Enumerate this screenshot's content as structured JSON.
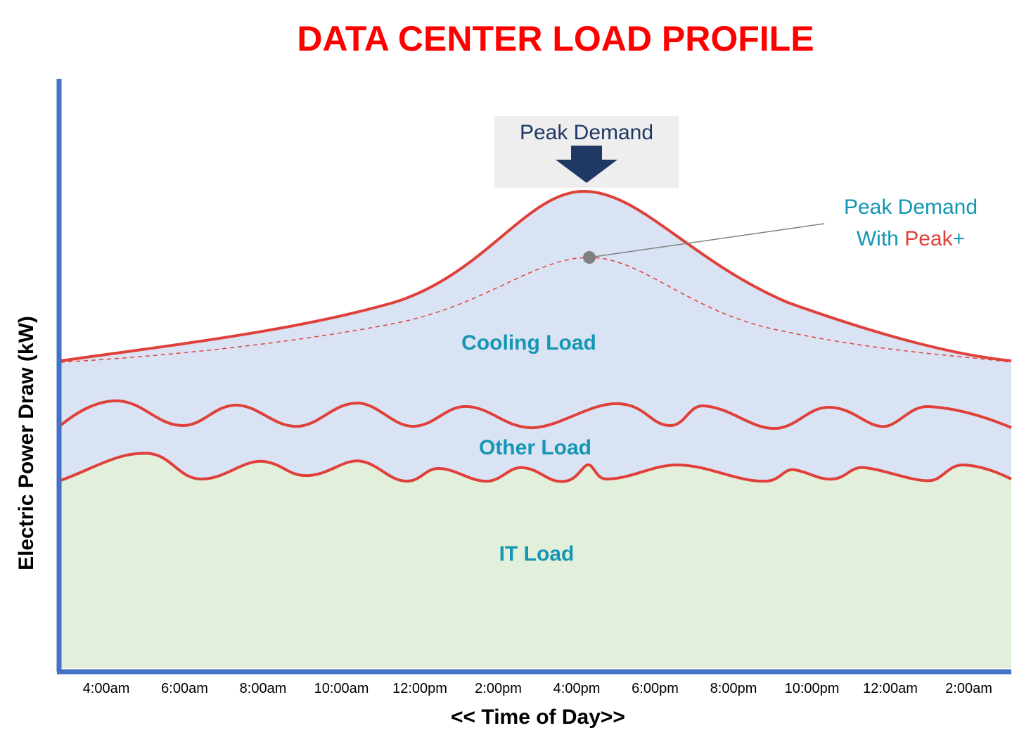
{
  "chart_data": {
    "type": "area",
    "title": "DATA CENTER LOAD PROFILE",
    "xlabel": "<< Time of Day>>",
    "ylabel": "Electric Power Draw (kW)",
    "categories": [
      "4:00am",
      "6:00am",
      "8:00am",
      "10:00am",
      "12:00pm",
      "2:00pm",
      "4:00pm",
      "6:00pm",
      "8:00pm",
      "10:00pm",
      "12:00am",
      "2:00am"
    ],
    "regions": [
      "Cooling Load",
      "Other Load",
      "IT Load"
    ],
    "annotations": {
      "peak_demand": "Peak Demand",
      "peak_plus_line1": "Peak Demand",
      "peak_plus_line2_prefix": "With ",
      "peak_plus_brand": "Peak",
      "peak_plus_suffix": "+"
    },
    "grid": false,
    "legend": "none"
  },
  "colors": {
    "title": "#ff0000",
    "axis": "#4472c4",
    "curve": "#e0403a",
    "cooling_fill": "#dae3f3",
    "it_fill": "#e2efda",
    "label_teal": "#1496b4",
    "peak_box": "#eeeeee",
    "peak_text": "#1f3864",
    "leader": "#808080"
  }
}
